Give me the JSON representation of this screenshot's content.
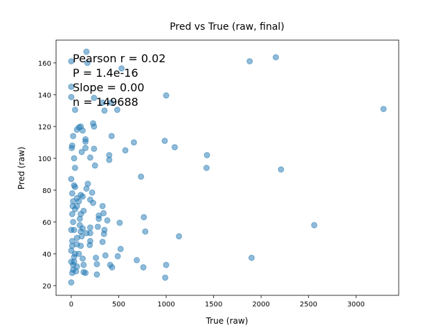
{
  "chart_data": {
    "type": "scatter",
    "title": "Pred vs True (raw, final)",
    "xlabel": "True (raw)",
    "ylabel": "Pred (raw)",
    "annotations": [
      "Pearson r = 0.02",
      "P = 1.4e-16",
      "Slope = 0.00",
      "n = 149688"
    ],
    "color": "#1f77b4",
    "xlim": [
      -160,
      3450
    ],
    "ylim": [
      13.9,
      174.3
    ],
    "xticks": [
      0,
      500,
      1000,
      1500,
      2000,
      2500,
      3000
    ],
    "yticks": [
      20,
      40,
      60,
      80,
      100,
      120,
      140,
      160
    ],
    "x": [
      2155,
      1880,
      3290,
      2210,
      2560,
      1900,
      1430,
      1425,
      1135,
      1000,
      985,
      1090,
      990,
      1000,
      760,
      690,
      780,
      765,
      735,
      660,
      570,
      530,
      510,
      520,
      490,
      485,
      425,
      400,
      400,
      380,
      360,
      410,
      430,
      330,
      340,
      350,
      330,
      345,
      290,
      290,
      280,
      260,
      270,
      270,
      240,
      250,
      230,
      240,
      240,
      330,
      350,
      420,
      170,
      160,
      200,
      175,
      160,
      220,
      230,
      200,
      200,
      200,
      200,
      195,
      150,
      150,
      150,
      100,
      80,
      60,
      120,
      110,
      40,
      20,
      10,
      5,
      30,
      40,
      0,
      0,
      0,
      0,
      30,
      40,
      10,
      20,
      15,
      40,
      100,
      120,
      130,
      100,
      60,
      60,
      80,
      90,
      90,
      100,
      60,
      110,
      40,
      30,
      20,
      10,
      50,
      80,
      120,
      130,
      130,
      150,
      0,
      10,
      0,
      20,
      10,
      0,
      30,
      60,
      100,
      120,
      160,
      10,
      30,
      60,
      0,
      20
    ],
    "values": [
      163.5,
      161,
      131,
      93,
      58,
      37.5,
      102,
      94,
      51,
      139.5,
      111,
      107,
      25,
      33,
      31.5,
      36,
      54,
      63,
      88.5,
      110,
      105,
      156.5,
      59.5,
      43,
      38.5,
      130.5,
      114,
      99,
      102,
      61,
      39,
      33,
      31.5,
      70,
      65.5,
      55,
      47.5,
      52.5,
      64,
      62,
      57,
      37.5,
      33.5,
      27,
      106,
      95.5,
      122,
      120,
      138,
      135,
      130,
      135,
      160,
      167,
      100.5,
      84,
      81,
      78.5,
      72,
      74,
      56.5,
      53,
      48,
      45.5,
      112,
      110.5,
      106.5,
      120,
      119.5,
      118,
      117.5,
      104,
      130.5,
      114,
      108,
      106.5,
      100,
      94,
      161,
      145,
      138.5,
      87,
      83,
      82,
      78,
      73,
      70,
      68,
      77,
      76,
      67,
      65,
      75,
      70,
      73,
      62,
      58,
      54,
      50,
      51,
      40,
      35,
      30,
      28,
      29,
      40,
      37,
      33,
      28.5,
      28,
      22,
      45,
      55,
      60,
      48,
      42,
      38,
      32,
      45,
      56,
      53,
      65,
      55,
      46,
      35,
      33
    ]
  }
}
